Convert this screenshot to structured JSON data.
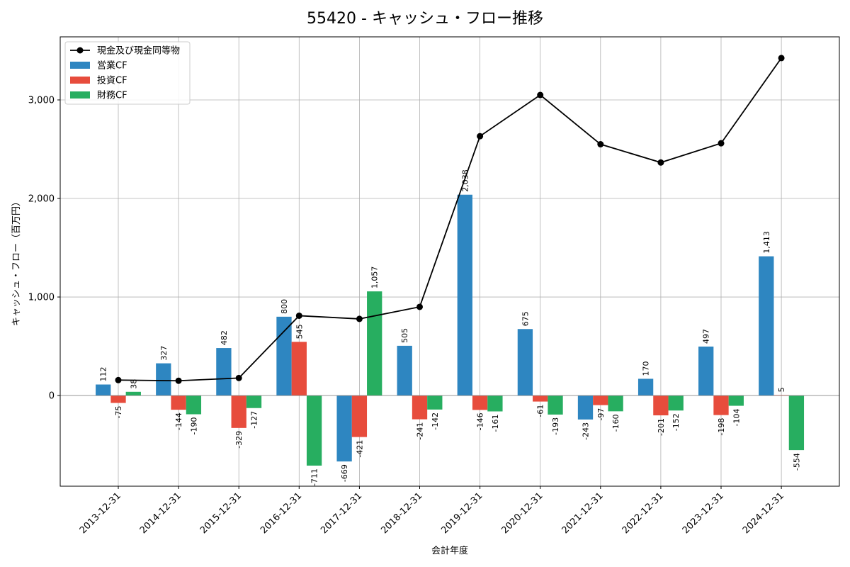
{
  "chart_data": {
    "type": "bar",
    "title": "55420 - キャッシュ・フロー推移",
    "xlabel": "会計年度",
    "ylabel": "キャッシュ・フロー（百万円）",
    "categories": [
      "2013-12-31",
      "2014-12-31",
      "2015-12-31",
      "2016-12-31",
      "2017-12-31",
      "2018-12-31",
      "2019-12-31",
      "2020-12-31",
      "2021-12-31",
      "2022-12-31",
      "2023-12-31",
      "2024-12-31"
    ],
    "ylim": [
      -920,
      3640
    ],
    "yticks": [
      0,
      1000,
      2000,
      3000
    ],
    "ytick_labels": [
      "0",
      "1,000",
      "2,000",
      "3,000"
    ],
    "grid": true,
    "legend_position": "top-left",
    "series": [
      {
        "name": "営業CF",
        "kind": "bar",
        "color": "#2e86c1",
        "values": [
          112,
          327,
          482,
          800,
          -669,
          505,
          2038,
          675,
          -243,
          170,
          497,
          1413
        ],
        "labels": [
          "112",
          "327",
          "482",
          "800",
          "-669",
          "505",
          "2,038",
          "675",
          "-243",
          "170",
          "497",
          "1,413"
        ]
      },
      {
        "name": "投資CF",
        "kind": "bar",
        "color": "#e74c3c",
        "values": [
          -75,
          -144,
          -329,
          545,
          -421,
          -241,
          -146,
          -61,
          -97,
          -201,
          -198,
          5
        ],
        "labels": [
          "-75",
          "-144",
          "-329",
          "545",
          "-421",
          "-241",
          "-146",
          "-61",
          "-97",
          "-201",
          "-198",
          "5"
        ]
      },
      {
        "name": "財務CF",
        "kind": "bar",
        "color": "#27ae60",
        "values": [
          38,
          -190,
          -127,
          -711,
          1057,
          -142,
          -161,
          -193,
          -160,
          -152,
          -104,
          -554
        ],
        "labels": [
          "38",
          "-190",
          "-127",
          "-711",
          "1,057",
          "-142",
          "-161",
          "-193",
          "-160",
          "-152",
          "-104",
          "-554"
        ]
      },
      {
        "name": "現金及び現金同等物",
        "kind": "line",
        "color": "#000000",
        "values": [
          157,
          150,
          178,
          810,
          778,
          900,
          2632,
          3050,
          2550,
          2365,
          2560,
          3425
        ]
      }
    ]
  }
}
